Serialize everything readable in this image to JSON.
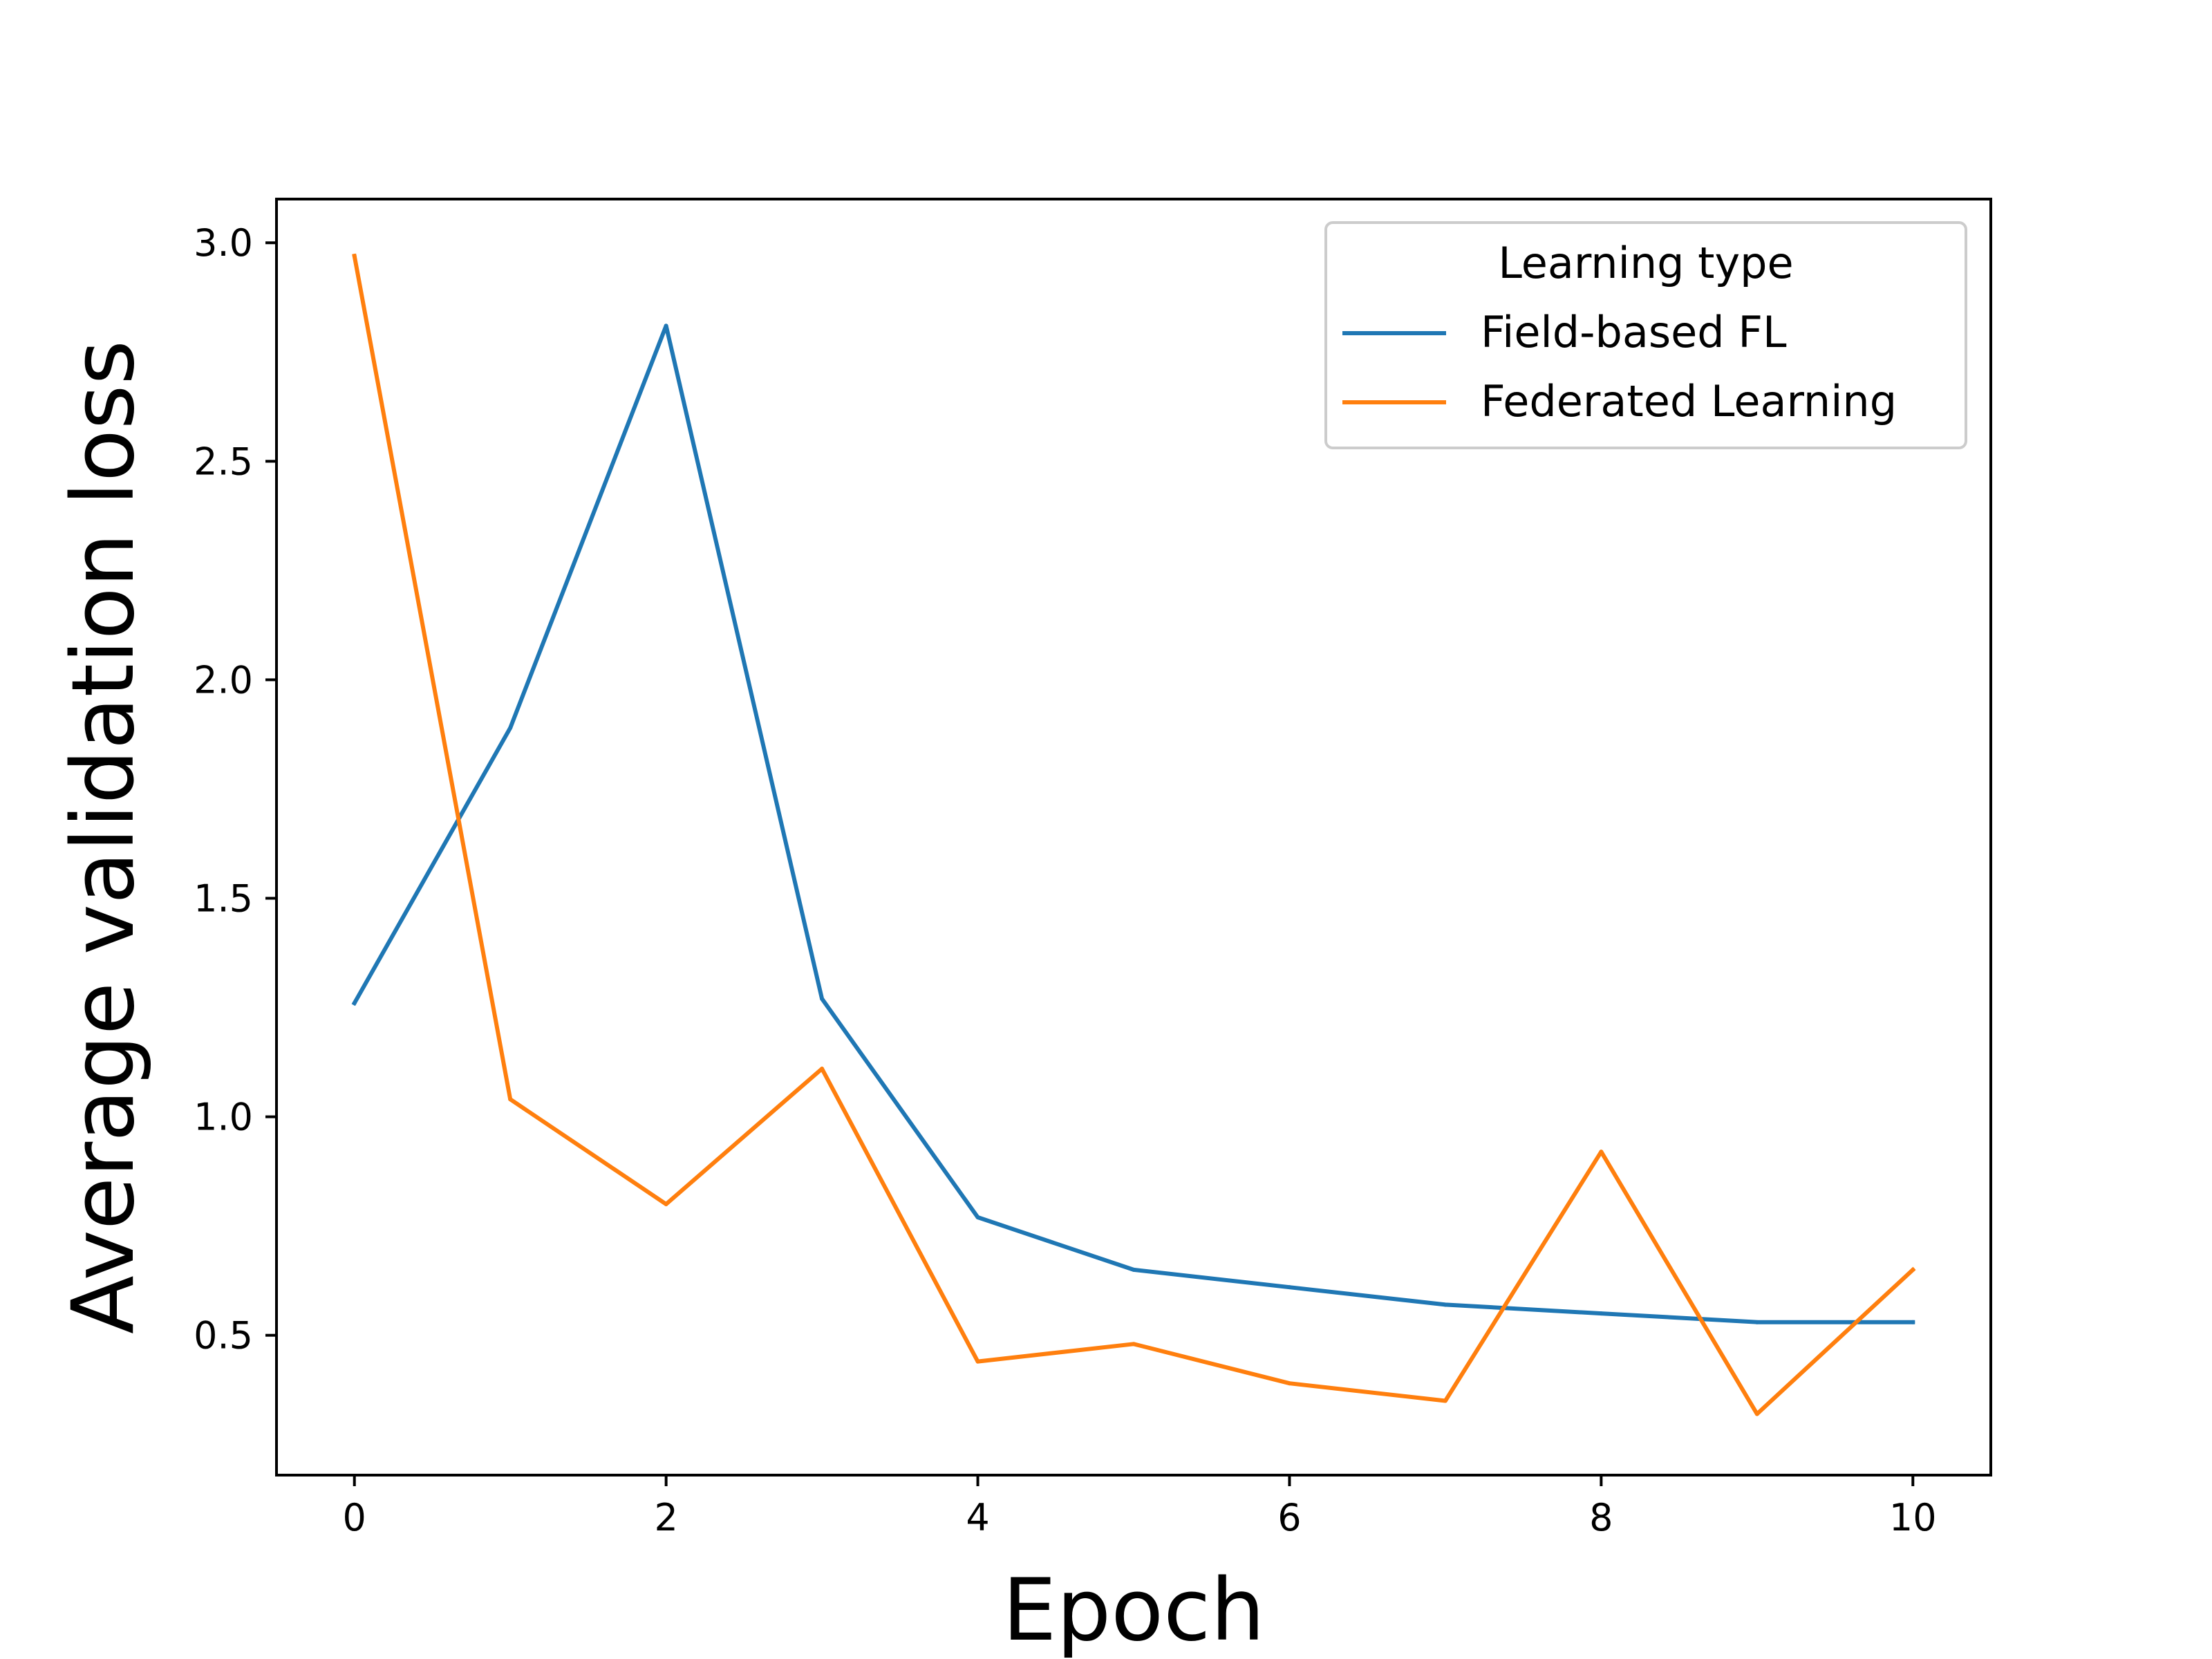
{
  "chart_data": {
    "type": "line",
    "title": "",
    "xlabel": "Epoch",
    "ylabel": "Average validation loss",
    "xlim": [
      -0.5,
      10.5
    ],
    "ylim": [
      0.18,
      3.1
    ],
    "xticks": [
      0,
      2,
      4,
      6,
      8,
      10
    ],
    "yticks": [
      0.5,
      1.0,
      1.5,
      2.0,
      2.5,
      3.0
    ],
    "grid": false,
    "legend": {
      "title": "Learning type",
      "placement": "upper right"
    },
    "x": [
      0,
      1,
      2,
      3,
      4,
      5,
      6,
      7,
      8,
      9,
      10
    ],
    "series": [
      {
        "name": "Field-based FL",
        "color": "#1f77b4",
        "values": [
          1.26,
          1.89,
          2.81,
          1.27,
          0.77,
          0.65,
          0.61,
          0.57,
          0.55,
          0.53,
          0.53
        ]
      },
      {
        "name": "Federated Learning",
        "color": "#ff7f0e",
        "values": [
          2.97,
          1.04,
          0.8,
          1.11,
          0.44,
          0.48,
          0.39,
          0.35,
          0.92,
          0.32,
          0.65
        ]
      }
    ]
  }
}
